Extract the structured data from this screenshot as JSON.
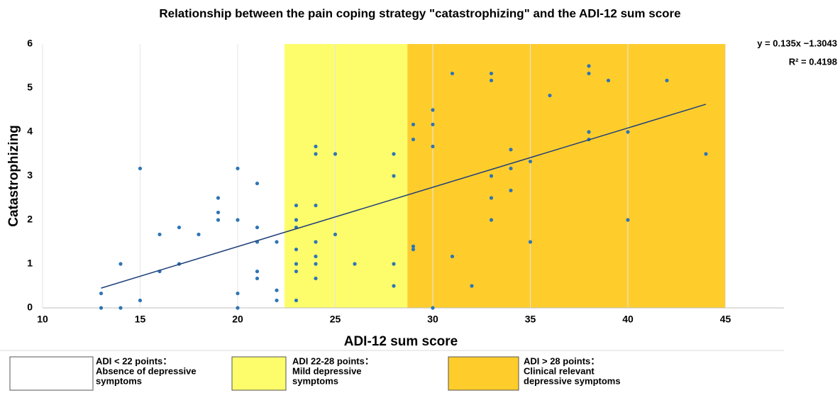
{
  "chart_data": {
    "type": "scatter",
    "title": "Relationship between the pain coping strategy \"catastrophizing\" and the ADI-12 sum score",
    "x_label": "ADI-12 sum score",
    "y_label": "Catastrophizing",
    "xlim": [
      10,
      48
    ],
    "ylim": [
      0,
      6
    ],
    "xticks": [
      10,
      15,
      20,
      25,
      30,
      35,
      40,
      45
    ],
    "yticks": [
      0,
      1,
      2,
      3,
      4,
      5,
      6
    ],
    "grid": true,
    "color": "#2e75b6",
    "x": [
      13,
      13,
      14,
      14,
      15,
      15,
      16,
      16,
      17,
      17,
      18,
      19,
      19,
      19,
      20,
      20,
      20,
      20,
      21,
      21,
      21,
      21,
      21,
      22,
      22,
      22,
      23,
      23,
      23,
      23,
      23,
      23,
      23,
      24,
      24,
      24,
      24,
      24,
      24,
      24,
      25,
      25,
      26,
      28,
      28,
      28,
      28,
      29,
      29,
      29,
      29,
      30,
      30,
      30,
      30,
      31,
      31,
      32,
      33,
      33,
      33,
      33,
      33,
      34,
      34,
      34,
      35,
      35,
      36,
      38,
      38,
      38,
      38,
      39,
      40,
      40,
      42,
      44
    ],
    "values": [
      0.33,
      0,
      1,
      0,
      3.17,
      0.17,
      1.67,
      0.83,
      1.83,
      1,
      1.67,
      2.5,
      2.17,
      2,
      3.17,
      2,
      0.33,
      0,
      2.83,
      1.83,
      1.5,
      0.83,
      0.67,
      1.5,
      0.4,
      0.17,
      2.33,
      2,
      1.83,
      1.33,
      1,
      0.83,
      0.17,
      3.67,
      3.5,
      2.33,
      1.5,
      1.17,
      1,
      0.67,
      3.5,
      1.67,
      1,
      3.5,
      3,
      1,
      0.5,
      4.17,
      3.83,
      1.4,
      1.33,
      4.5,
      4.17,
      3.67,
      0,
      5.33,
      1.17,
      0.5,
      5.33,
      5.17,
      3,
      2.5,
      2,
      3.6,
      3.17,
      2.67,
      3.33,
      1.5,
      4.83,
      5.5,
      5.33,
      4,
      3.83,
      5.17,
      4,
      2,
      5.17,
      3.5
    ],
    "trendline": {
      "x": [
        13,
        44
      ],
      "values": [
        0.45,
        4.63
      ],
      "color": "#1f3f7a"
    },
    "annotations": [
      "y = 0.135x −1.3043",
      "R² = 0.4198"
    ],
    "bands": [
      {
        "range": [
          10,
          22.4
        ],
        "color": "#ffffff",
        "label": [
          "ADI < 22 points：",
          "Absence of depressive",
          "symptoms"
        ]
      },
      {
        "range": [
          22.4,
          28.7
        ],
        "color": "#fdfd6c",
        "label": [
          "ADI 22-28 points：",
          "Mild depressive",
          "symptoms"
        ]
      },
      {
        "range": [
          28.7,
          45
        ],
        "color": "#fecd2c",
        "label": [
          "ADI > 28 points：",
          "Clinical relevant",
          "depressive symptoms"
        ]
      }
    ]
  }
}
